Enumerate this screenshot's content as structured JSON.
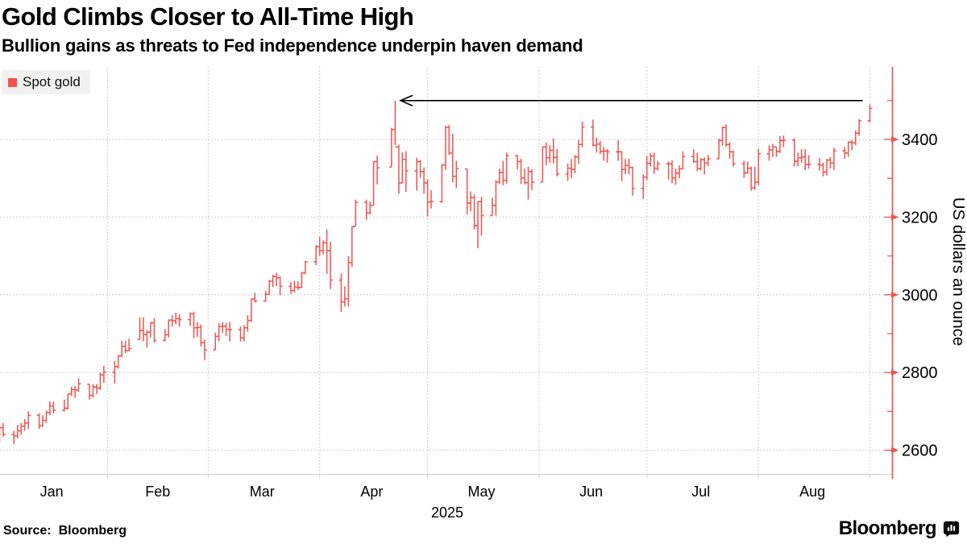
{
  "header": {
    "title": "Gold Climbs Closer to All-Time High",
    "subtitle": "Bullion gains as threats to Fed independence underpin haven demand"
  },
  "legend": {
    "label": "Spot gold",
    "swatch_color": "#f4504e"
  },
  "footer": {
    "source_prefix": "Source:",
    "source_value": "Bloomberg",
    "brand": "Bloomberg",
    "brand_icon": "bar-chart-bubble-icon"
  },
  "colors": {
    "bars": "#ee5351",
    "axis_line": "#ee5351",
    "grid": "#bdbdbd",
    "arrow": "#000000",
    "legend_bg": "#f1f1ef",
    "legend_swatch": "#f4504e",
    "text": "#000000"
  },
  "chart_data": {
    "type": "ohlc-bar",
    "series_name": "Spot gold",
    "title": "Gold Climbs Closer to All-Time High",
    "subtitle": "Bullion gains as threats to Fed independence underpin haven demand",
    "ylabel": "US dollars an ounce",
    "year_label": "2025",
    "x_months": [
      "Jan",
      "Feb",
      "Mar",
      "Apr",
      "May",
      "Jun",
      "Jul",
      "Aug"
    ],
    "month_label_center_days": [
      15.5,
      45,
      74,
      104.5,
      135,
      165.5,
      196,
      227
    ],
    "month_boundary_days": [
      31,
      59,
      90,
      120,
      151,
      181,
      212,
      243
    ],
    "y_ticks": [
      2600,
      2800,
      3000,
      3200,
      3400
    ],
    "y_minor_ticks": [
      2500,
      2700,
      2900,
      3100,
      3300,
      3500
    ],
    "ylim": [
      2542,
      3587
    ],
    "grid": "dashed-both-axes",
    "legend_position": "top-left",
    "axis_position": "right",
    "annotation": {
      "shape": "left-arrow",
      "at_value": 3500,
      "tip_day": 112.5,
      "tail_day": 241,
      "points_to": "April 22 intraday record near 3500"
    },
    "bars_format": [
      "day_of_year_from_jan1",
      "low",
      "high",
      "close"
    ],
    "bars": [
      [
        1,
        2620,
        2665,
        2658
      ],
      [
        2,
        2635,
        2670,
        2640
      ],
      [
        5,
        2615,
        2650,
        2637
      ],
      [
        6,
        2630,
        2665,
        2650
      ],
      [
        7,
        2640,
        2670,
        2662
      ],
      [
        8,
        2650,
        2680,
        2670
      ],
      [
        9,
        2655,
        2700,
        2690
      ],
      [
        12,
        2655,
        2695,
        2663
      ],
      [
        13,
        2660,
        2690,
        2677
      ],
      [
        14,
        2670,
        2702,
        2697
      ],
      [
        15,
        2690,
        2725,
        2714
      ],
      [
        16,
        2695,
        2725,
        2703
      ],
      [
        19,
        2700,
        2730,
        2708
      ],
      [
        20,
        2705,
        2745,
        2745
      ],
      [
        21,
        2740,
        2763,
        2756
      ],
      [
        22,
        2735,
        2765,
        2755
      ],
      [
        23,
        2750,
        2785,
        2771
      ],
      [
        26,
        2730,
        2770,
        2741
      ],
      [
        27,
        2735,
        2770,
        2763
      ],
      [
        28,
        2745,
        2770,
        2760
      ],
      [
        29,
        2755,
        2800,
        2794
      ],
      [
        30,
        2773,
        2817,
        2801
      ],
      [
        33,
        2772,
        2830,
        2815
      ],
      [
        34,
        2810,
        2845,
        2843
      ],
      [
        35,
        2840,
        2882,
        2867
      ],
      [
        36,
        2850,
        2882,
        2856
      ],
      [
        37,
        2855,
        2887,
        2861
      ],
      [
        40,
        2885,
        2942,
        2908
      ],
      [
        41,
        2880,
        2942,
        2898
      ],
      [
        42,
        2864,
        2909,
        2904
      ],
      [
        43,
        2890,
        2930,
        2928
      ],
      [
        44,
        2877,
        2940,
        2883
      ],
      [
        47,
        2880,
        2912,
        2897
      ],
      [
        48,
        2890,
        2937,
        2935
      ],
      [
        49,
        2918,
        2947,
        2933
      ],
      [
        50,
        2924,
        2954,
        2939
      ],
      [
        51,
        2917,
        2950,
        2936
      ],
      [
        54,
        2920,
        2955,
        2951
      ],
      [
        55,
        2888,
        2956,
        2915
      ],
      [
        56,
        2892,
        2930,
        2916
      ],
      [
        57,
        2867,
        2923,
        2877
      ],
      [
        58,
        2832,
        2885,
        2858
      ],
      [
        61,
        2858,
        2902,
        2893
      ],
      [
        62,
        2880,
        2927,
        2918
      ],
      [
        63,
        2902,
        2929,
        2919
      ],
      [
        64,
        2894,
        2928,
        2911
      ],
      [
        65,
        2880,
        2930,
        2910
      ],
      [
        68,
        2880,
        2918,
        2889
      ],
      [
        69,
        2880,
        2922,
        2915
      ],
      [
        70,
        2905,
        2947,
        2934
      ],
      [
        71,
        2930,
        2990,
        2989
      ],
      [
        72,
        2980,
        3005,
        2984
      ],
      [
        75,
        2982,
        3010,
        3001
      ],
      [
        76,
        3000,
        3039,
        3035
      ],
      [
        77,
        3020,
        3052,
        3047
      ],
      [
        78,
        3022,
        3057,
        3044
      ],
      [
        79,
        2999,
        3047,
        3022
      ],
      [
        82,
        3002,
        3033,
        3011
      ],
      [
        83,
        3006,
        3036,
        3020
      ],
      [
        84,
        3012,
        3035,
        3019
      ],
      [
        85,
        3018,
        3059,
        3056
      ],
      [
        86,
        3053,
        3086,
        3085
      ],
      [
        89,
        3076,
        3128,
        3124
      ],
      [
        90,
        3100,
        3149,
        3114
      ],
      [
        91,
        3104,
        3140,
        3134
      ],
      [
        92,
        3054,
        3168,
        3114
      ],
      [
        93,
        3015,
        3136,
        3038
      ],
      [
        96,
        2956,
        3055,
        2982
      ],
      [
        97,
        2970,
        3022,
        2990
      ],
      [
        98,
        2970,
        3100,
        3083
      ],
      [
        99,
        3072,
        3176,
        3175
      ],
      [
        100,
        3176,
        3245,
        3238
      ],
      [
        103,
        3193,
        3245,
        3211
      ],
      [
        104,
        3207,
        3240,
        3230
      ],
      [
        105,
        3230,
        3343,
        3343
      ],
      [
        106,
        3284,
        3358,
        3327
      ],
      [
        110,
        3329,
        3430,
        3425
      ],
      [
        111,
        3385,
        3500,
        3381
      ],
      [
        112,
        3260,
        3386,
        3288
      ],
      [
        113,
        3287,
        3367,
        3349
      ],
      [
        114,
        3265,
        3370,
        3319
      ],
      [
        117,
        3268,
        3353,
        3343
      ],
      [
        118,
        3301,
        3347,
        3317
      ],
      [
        119,
        3260,
        3328,
        3288
      ],
      [
        120,
        3202,
        3298,
        3239
      ],
      [
        121,
        3222,
        3269,
        3240
      ],
      [
        124,
        3237,
        3337,
        3334
      ],
      [
        125,
        3322,
        3435,
        3431
      ],
      [
        126,
        3360,
        3437,
        3365
      ],
      [
        127,
        3290,
        3415,
        3305
      ],
      [
        128,
        3275,
        3345,
        3325
      ],
      [
        131,
        3207,
        3324,
        3236
      ],
      [
        132,
        3215,
        3266,
        3250
      ],
      [
        133,
        3168,
        3258,
        3178
      ],
      [
        134,
        3120,
        3241,
        3240
      ],
      [
        135,
        3153,
        3252,
        3204
      ],
      [
        138,
        3204,
        3250,
        3230
      ],
      [
        139,
        3204,
        3295,
        3290
      ],
      [
        140,
        3285,
        3325,
        3315
      ],
      [
        141,
        3282,
        3345,
        3295
      ],
      [
        142,
        3287,
        3366,
        3358
      ],
      [
        145,
        3323,
        3360,
        3343
      ],
      [
        146,
        3285,
        3350,
        3301
      ],
      [
        147,
        3284,
        3325,
        3289
      ],
      [
        148,
        3245,
        3330,
        3317
      ],
      [
        149,
        3270,
        3323,
        3290
      ],
      [
        152,
        3290,
        3382,
        3381
      ],
      [
        153,
        3333,
        3392,
        3353
      ],
      [
        154,
        3340,
        3385,
        3372
      ],
      [
        155,
        3338,
        3403,
        3354
      ],
      [
        156,
        3305,
        3375,
        3311
      ],
      [
        159,
        3293,
        3338,
        3326
      ],
      [
        160,
        3300,
        3350,
        3323
      ],
      [
        161,
        3312,
        3360,
        3355
      ],
      [
        162,
        3337,
        3399,
        3387
      ],
      [
        163,
        3380,
        3446,
        3432
      ],
      [
        166,
        3382,
        3451,
        3385
      ],
      [
        167,
        3366,
        3405,
        3388
      ],
      [
        168,
        3362,
        3396,
        3369
      ],
      [
        169,
        3345,
        3381,
        3370
      ],
      [
        170,
        3340,
        3375,
        3368
      ],
      [
        173,
        3345,
        3398,
        3368
      ],
      [
        174,
        3293,
        3370,
        3323
      ],
      [
        175,
        3310,
        3350,
        3333
      ],
      [
        176,
        3310,
        3350,
        3328
      ],
      [
        177,
        3255,
        3330,
        3274
      ],
      [
        180,
        3247,
        3310,
        3303
      ],
      [
        181,
        3295,
        3358,
        3338
      ],
      [
        182,
        3330,
        3365,
        3357
      ],
      [
        183,
        3311,
        3366,
        3326
      ],
      [
        184,
        3320,
        3345,
        3337
      ],
      [
        187,
        3296,
        3343,
        3337
      ],
      [
        188,
        3287,
        3346,
        3301
      ],
      [
        189,
        3283,
        3325,
        3313
      ],
      [
        190,
        3300,
        3333,
        3324
      ],
      [
        191,
        3323,
        3369,
        3356
      ],
      [
        194,
        3340,
        3375,
        3343
      ],
      [
        195,
        3318,
        3366,
        3325
      ],
      [
        196,
        3320,
        3352,
        3348
      ],
      [
        197,
        3310,
        3354,
        3339
      ],
      [
        198,
        3331,
        3360,
        3350
      ],
      [
        201,
        3350,
        3402,
        3397
      ],
      [
        202,
        3384,
        3433,
        3431
      ],
      [
        203,
        3381,
        3439,
        3387
      ],
      [
        204,
        3350,
        3393,
        3368
      ],
      [
        205,
        3330,
        3372,
        3337
      ],
      [
        208,
        3301,
        3345,
        3314
      ],
      [
        209,
        3312,
        3343,
        3326
      ],
      [
        210,
        3268,
        3330,
        3275
      ],
      [
        211,
        3270,
        3330,
        3290
      ],
      [
        212,
        3282,
        3376,
        3363
      ],
      [
        215,
        3345,
        3385,
        3373
      ],
      [
        216,
        3355,
        3389,
        3381
      ],
      [
        217,
        3355,
        3381,
        3369
      ],
      [
        218,
        3365,
        3409,
        3397
      ],
      [
        219,
        3380,
        3410,
        3398
      ],
      [
        222,
        3330,
        3403,
        3344
      ],
      [
        223,
        3331,
        3366,
        3353
      ],
      [
        224,
        3340,
        3375,
        3355
      ],
      [
        225,
        3321,
        3375,
        3335
      ],
      [
        226,
        3325,
        3360,
        3336
      ],
      [
        229,
        3320,
        3352,
        3334
      ],
      [
        230,
        3305,
        3340,
        3316
      ],
      [
        231,
        3307,
        3350,
        3347
      ],
      [
        232,
        3325,
        3355,
        3339
      ],
      [
        233,
        3321,
        3378,
        3371
      ],
      [
        236,
        3350,
        3380,
        3365
      ],
      [
        237,
        3355,
        3395,
        3393
      ],
      [
        238,
        3373,
        3399,
        3391
      ],
      [
        239,
        3385,
        3423,
        3416
      ],
      [
        240,
        3410,
        3452,
        3448
      ],
      [
        243,
        3444,
        3490,
        3480
      ]
    ]
  }
}
